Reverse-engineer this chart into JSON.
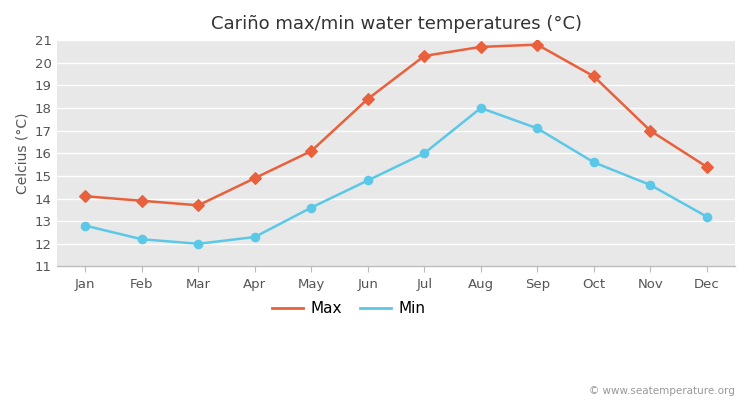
{
  "months": [
    "Jan",
    "Feb",
    "Mar",
    "Apr",
    "May",
    "Jun",
    "Jul",
    "Aug",
    "Sep",
    "Oct",
    "Nov",
    "Dec"
  ],
  "max_temps": [
    14.1,
    13.9,
    13.7,
    14.9,
    16.1,
    18.4,
    20.3,
    20.7,
    20.8,
    19.4,
    17.0,
    15.4
  ],
  "min_temps": [
    12.8,
    12.2,
    12.0,
    12.3,
    13.6,
    14.8,
    16.0,
    18.0,
    17.1,
    15.6,
    14.6,
    13.2
  ],
  "max_color": "#e8603c",
  "min_color": "#5bc8e8",
  "fig_bg_color": "#ffffff",
  "plot_bg_color": "#e8e8e8",
  "title": "Cariño max/min water temperatures (°C)",
  "ylabel": "Celcius (°C)",
  "ylim": [
    11,
    21
  ],
  "yticks": [
    11,
    12,
    13,
    14,
    15,
    16,
    17,
    18,
    19,
    20,
    21
  ],
  "legend_max": "Max",
  "legend_min": "Min",
  "watermark": "© www.seatemperature.org",
  "title_fontsize": 13,
  "label_fontsize": 10,
  "tick_fontsize": 9.5,
  "watermark_fontsize": 7.5,
  "grid_color": "#ffffff",
  "spine_color": "#bbbbbb"
}
